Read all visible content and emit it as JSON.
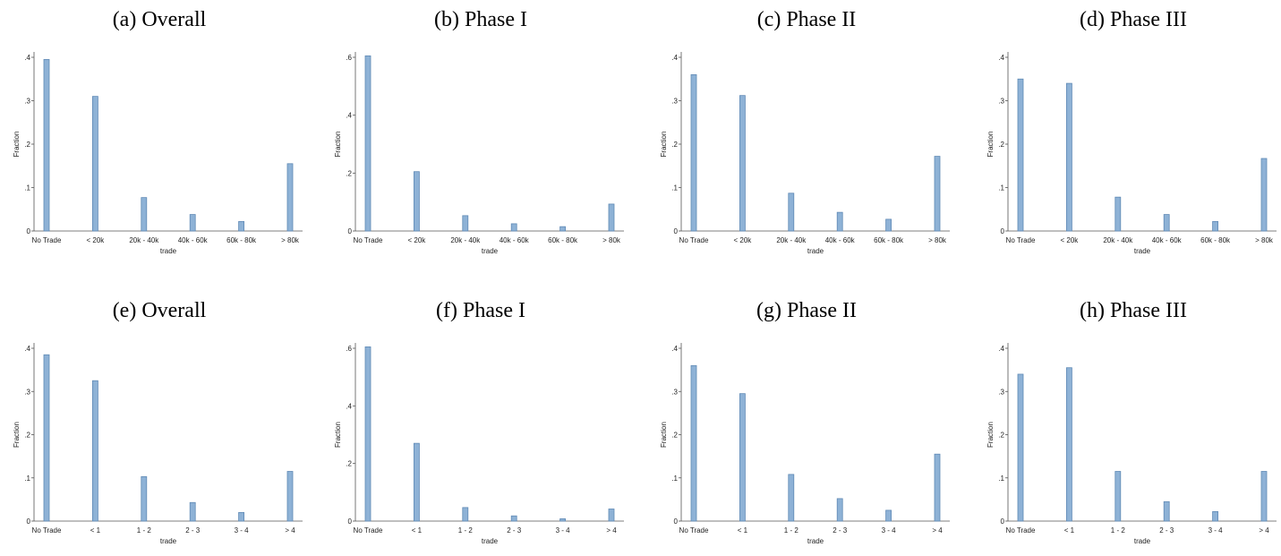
{
  "chart_data": [
    {
      "type": "bar",
      "title": "(a) Overall",
      "xlabel": "trade",
      "ylabel": "Fraction",
      "categories": [
        "No Trade",
        "< 20k",
        "20k - 40k",
        "40k - 60k",
        "60k - 80k",
        "> 80k"
      ],
      "values": [
        0.395,
        0.31,
        0.077,
        0.038,
        0.022,
        0.155
      ],
      "ylim": [
        0,
        0.4
      ],
      "yticks": [
        0,
        0.1,
        0.2,
        0.3,
        0.4
      ],
      "yticklabels": [
        "0",
        ".1",
        ".2",
        ".3",
        ".4"
      ],
      "grid": false
    },
    {
      "type": "bar",
      "title": "(b) Phase I",
      "xlabel": "trade",
      "ylabel": "Fraction",
      "categories": [
        "No Trade",
        "< 20k",
        "20k - 40k",
        "40k - 60k",
        "60k - 80k",
        "> 80k"
      ],
      "values": [
        0.605,
        0.205,
        0.053,
        0.025,
        0.015,
        0.093
      ],
      "ylim": [
        0,
        0.6
      ],
      "yticks": [
        0,
        0.2,
        0.4,
        0.6
      ],
      "yticklabels": [
        "0",
        ".2",
        ".4",
        ".6"
      ],
      "grid": false
    },
    {
      "type": "bar",
      "title": "(c) Phase II",
      "xlabel": "trade",
      "ylabel": "Fraction",
      "categories": [
        "No Trade",
        "< 20k",
        "20k - 40k",
        "40k - 60k",
        "60k - 80k",
        "> 80k"
      ],
      "values": [
        0.36,
        0.312,
        0.087,
        0.043,
        0.027,
        0.172
      ],
      "ylim": [
        0,
        0.4
      ],
      "yticks": [
        0,
        0.1,
        0.2,
        0.3,
        0.4
      ],
      "yticklabels": [
        "0",
        ".1",
        ".2",
        ".3",
        ".4"
      ],
      "grid": false
    },
    {
      "type": "bar",
      "title": "(d) Phase III",
      "xlabel": "trade",
      "ylabel": "Fraction",
      "categories": [
        "No Trade",
        "< 20k",
        "20k - 40k",
        "40k - 60k",
        "60k - 80k",
        "> 80k"
      ],
      "values": [
        0.35,
        0.34,
        0.078,
        0.038,
        0.022,
        0.167
      ],
      "ylim": [
        0,
        0.4
      ],
      "yticks": [
        0,
        0.1,
        0.2,
        0.3,
        0.4
      ],
      "yticklabels": [
        "0",
        ".1",
        ".2",
        ".3",
        ".4"
      ],
      "grid": false
    },
    {
      "type": "bar",
      "title": "(e) Overall",
      "xlabel": "trade",
      "ylabel": "Fraction",
      "categories": [
        "No Trade",
        "< 1",
        "1 - 2",
        "2 - 3",
        "3 - 4",
        "> 4"
      ],
      "values": [
        0.385,
        0.325,
        0.103,
        0.043,
        0.02,
        0.115
      ],
      "ylim": [
        0,
        0.4
      ],
      "yticks": [
        0,
        0.1,
        0.2,
        0.3,
        0.4
      ],
      "yticklabels": [
        "0",
        ".1",
        ".2",
        ".3",
        ".4"
      ],
      "grid": false
    },
    {
      "type": "bar",
      "title": "(f) Phase I",
      "xlabel": "trade",
      "ylabel": "Fraction",
      "categories": [
        "No Trade",
        "< 1",
        "1 - 2",
        "2 - 3",
        "3 - 4",
        "> 4"
      ],
      "values": [
        0.605,
        0.27,
        0.047,
        0.018,
        0.008,
        0.042
      ],
      "ylim": [
        0,
        0.6
      ],
      "yticks": [
        0,
        0.2,
        0.4,
        0.6
      ],
      "yticklabels": [
        "0",
        ".2",
        ".4",
        ".6"
      ],
      "grid": false
    },
    {
      "type": "bar",
      "title": "(g) Phase II",
      "xlabel": "trade",
      "ylabel": "Fraction",
      "categories": [
        "No Trade",
        "< 1",
        "1 - 2",
        "2 - 3",
        "3 - 4",
        "> 4"
      ],
      "values": [
        0.36,
        0.295,
        0.108,
        0.052,
        0.025,
        0.155
      ],
      "ylim": [
        0,
        0.4
      ],
      "yticks": [
        0,
        0.1,
        0.2,
        0.3,
        0.4
      ],
      "yticklabels": [
        "0",
        ".1",
        ".2",
        ".3",
        ".4"
      ],
      "grid": false
    },
    {
      "type": "bar",
      "title": "(h) Phase III",
      "xlabel": "trade",
      "ylabel": "Fraction",
      "categories": [
        "No Trade",
        "< 1",
        "1 - 2",
        "2 - 3",
        "3 - 4",
        "> 4"
      ],
      "values": [
        0.34,
        0.355,
        0.115,
        0.045,
        0.022,
        0.115
      ],
      "ylim": [
        0,
        0.4
      ],
      "yticks": [
        0,
        0.1,
        0.2,
        0.3,
        0.4
      ],
      "yticklabels": [
        "0",
        ".1",
        ".2",
        ".3",
        ".4"
      ],
      "grid": false
    }
  ],
  "colors": {
    "bar_fill": "#8eb2d6",
    "bar_stroke": "#5f89b5",
    "axis": "#555555",
    "text": "#222222"
  }
}
